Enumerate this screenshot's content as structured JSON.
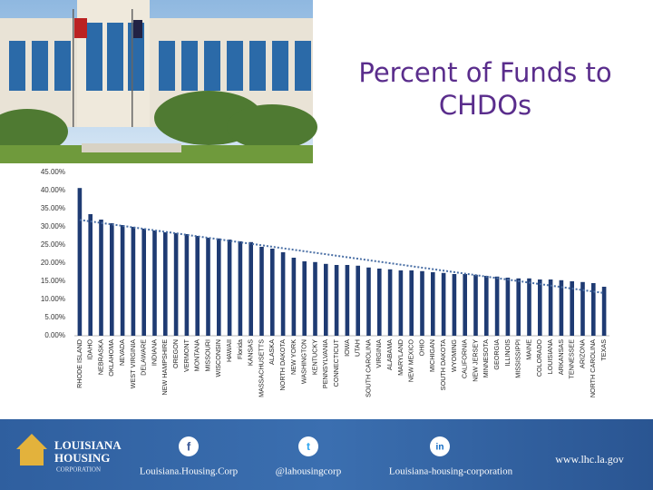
{
  "chart_data": {
    "type": "bar",
    "title": "Percent of Funds to CHDOs",
    "categories": [
      "RHODE ISLAND",
      "IDAHO",
      "NEBRASKA",
      "OKLAHOMA",
      "NEVADA",
      "WEST VIRGINIA",
      "DELAWARE",
      "INDIANA",
      "NEW HAMPSHIRE",
      "OREGON",
      "VERMONT",
      "MONTANA",
      "MISSOURI",
      "WISCONSIN",
      "HAWAII",
      "Florida",
      "KANSAS",
      "MASSACHUSETTS",
      "ALASKA",
      "NORTH DAKOTA",
      "NEW YORK",
      "WASHINGTON",
      "KENTUCKY",
      "PENNSYLVANIA",
      "CONNECTICUT",
      "IOWA",
      "UTAH",
      "SOUTH CAROLINA",
      "VIRGINIA",
      "ALABAMA",
      "MARYLAND",
      "NEW MEXICO",
      "OHIO",
      "MICHIGAN",
      "SOUTH DAKOTA",
      "WYOMING",
      "CALIFORNIA",
      "NEW JERSEY",
      "MINNESOTA",
      "GEORGIA",
      "ILLINOIS",
      "MISSISSIPPI",
      "MAINE",
      "COLORADO",
      "LOUISIANA",
      "ARKANSAS",
      "TENNESSEE",
      "ARIZONA",
      "NORTH CAROLINA",
      "TEXAS"
    ],
    "values": [
      40.7,
      33.5,
      32,
      31,
      30.5,
      30,
      29.5,
      29,
      28.5,
      28.3,
      28,
      27.5,
      27,
      26.8,
      26.5,
      26,
      25.8,
      24.5,
      24,
      23,
      21.5,
      20.5,
      20.3,
      19.8,
      19.5,
      19.5,
      19.3,
      18.8,
      18.5,
      18.3,
      18,
      18,
      17.8,
      17.5,
      17.3,
      17,
      17,
      16.8,
      16.5,
      16.3,
      16,
      15.8,
      15.8,
      15.5,
      15.5,
      15.3,
      15,
      14.8,
      14.5,
      13.5
    ],
    "color": "#1f3b73",
    "trendline": true,
    "grid": false,
    "ylim": [
      0,
      45
    ],
    "yticks": [
      {
        "value": 0,
        "label": "0.00%"
      },
      {
        "value": 5,
        "label": "5.00%"
      },
      {
        "value": 10,
        "label": "10.00%"
      },
      {
        "value": 15,
        "label": "15.00%"
      },
      {
        "value": 20,
        "label": "20.00%"
      },
      {
        "value": 25,
        "label": "25.00%"
      },
      {
        "value": 30,
        "label": "30.00%"
      },
      {
        "value": 35,
        "label": "35.00%"
      },
      {
        "value": 40,
        "label": "40.00%"
      },
      {
        "value": 45,
        "label": "45.00%"
      }
    ]
  },
  "footer": {
    "logo_line1": "LOUISIANA",
    "logo_line2": "HOUSING",
    "logo_line3": "CORPORATION",
    "facebook": "Louisiana.Housing.Corp",
    "twitter": "@lahousingcorp",
    "linkedin": "Louisiana-housing-corporation",
    "website": "www.lhc.la.gov"
  }
}
